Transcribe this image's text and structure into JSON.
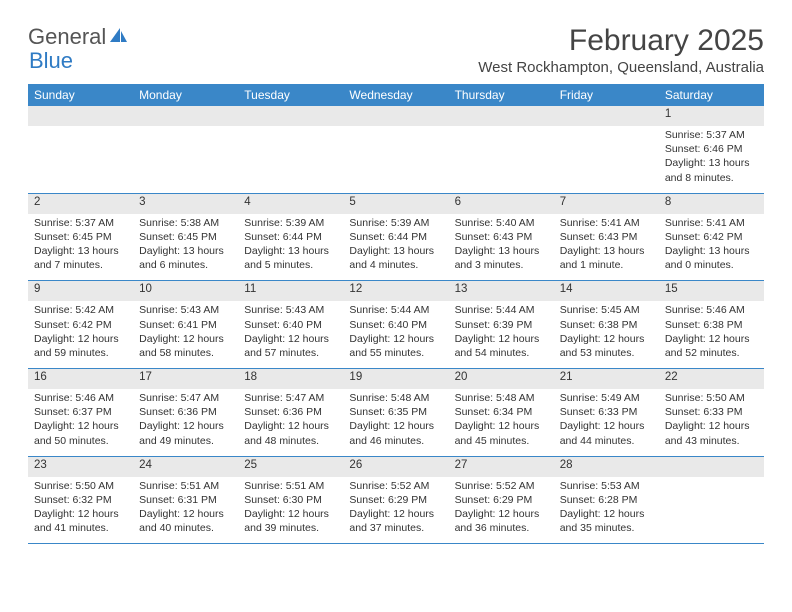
{
  "logo": {
    "text1": "General",
    "text2": "Blue"
  },
  "title": "February 2025",
  "location": "West Rockhampton, Queensland, Australia",
  "colors": {
    "header_bg": "#3a87c8",
    "header_text": "#ffffff",
    "daynum_bg": "#e9e9e9",
    "border": "#3a87c8",
    "text": "#333333",
    "logo_gray": "#555555",
    "logo_blue": "#2f7bc4",
    "page_bg": "#ffffff"
  },
  "day_labels": [
    "Sunday",
    "Monday",
    "Tuesday",
    "Wednesday",
    "Thursday",
    "Friday",
    "Saturday"
  ],
  "weeks": [
    [
      null,
      null,
      null,
      null,
      null,
      null,
      {
        "n": "1",
        "sunrise": "Sunrise: 5:37 AM",
        "sunset": "Sunset: 6:46 PM",
        "daylight": "Daylight: 13 hours and 8 minutes."
      }
    ],
    [
      {
        "n": "2",
        "sunrise": "Sunrise: 5:37 AM",
        "sunset": "Sunset: 6:45 PM",
        "daylight": "Daylight: 13 hours and 7 minutes."
      },
      {
        "n": "3",
        "sunrise": "Sunrise: 5:38 AM",
        "sunset": "Sunset: 6:45 PM",
        "daylight": "Daylight: 13 hours and 6 minutes."
      },
      {
        "n": "4",
        "sunrise": "Sunrise: 5:39 AM",
        "sunset": "Sunset: 6:44 PM",
        "daylight": "Daylight: 13 hours and 5 minutes."
      },
      {
        "n": "5",
        "sunrise": "Sunrise: 5:39 AM",
        "sunset": "Sunset: 6:44 PM",
        "daylight": "Daylight: 13 hours and 4 minutes."
      },
      {
        "n": "6",
        "sunrise": "Sunrise: 5:40 AM",
        "sunset": "Sunset: 6:43 PM",
        "daylight": "Daylight: 13 hours and 3 minutes."
      },
      {
        "n": "7",
        "sunrise": "Sunrise: 5:41 AM",
        "sunset": "Sunset: 6:43 PM",
        "daylight": "Daylight: 13 hours and 1 minute."
      },
      {
        "n": "8",
        "sunrise": "Sunrise: 5:41 AM",
        "sunset": "Sunset: 6:42 PM",
        "daylight": "Daylight: 13 hours and 0 minutes."
      }
    ],
    [
      {
        "n": "9",
        "sunrise": "Sunrise: 5:42 AM",
        "sunset": "Sunset: 6:42 PM",
        "daylight": "Daylight: 12 hours and 59 minutes."
      },
      {
        "n": "10",
        "sunrise": "Sunrise: 5:43 AM",
        "sunset": "Sunset: 6:41 PM",
        "daylight": "Daylight: 12 hours and 58 minutes."
      },
      {
        "n": "11",
        "sunrise": "Sunrise: 5:43 AM",
        "sunset": "Sunset: 6:40 PM",
        "daylight": "Daylight: 12 hours and 57 minutes."
      },
      {
        "n": "12",
        "sunrise": "Sunrise: 5:44 AM",
        "sunset": "Sunset: 6:40 PM",
        "daylight": "Daylight: 12 hours and 55 minutes."
      },
      {
        "n": "13",
        "sunrise": "Sunrise: 5:44 AM",
        "sunset": "Sunset: 6:39 PM",
        "daylight": "Daylight: 12 hours and 54 minutes."
      },
      {
        "n": "14",
        "sunrise": "Sunrise: 5:45 AM",
        "sunset": "Sunset: 6:38 PM",
        "daylight": "Daylight: 12 hours and 53 minutes."
      },
      {
        "n": "15",
        "sunrise": "Sunrise: 5:46 AM",
        "sunset": "Sunset: 6:38 PM",
        "daylight": "Daylight: 12 hours and 52 minutes."
      }
    ],
    [
      {
        "n": "16",
        "sunrise": "Sunrise: 5:46 AM",
        "sunset": "Sunset: 6:37 PM",
        "daylight": "Daylight: 12 hours and 50 minutes."
      },
      {
        "n": "17",
        "sunrise": "Sunrise: 5:47 AM",
        "sunset": "Sunset: 6:36 PM",
        "daylight": "Daylight: 12 hours and 49 minutes."
      },
      {
        "n": "18",
        "sunrise": "Sunrise: 5:47 AM",
        "sunset": "Sunset: 6:36 PM",
        "daylight": "Daylight: 12 hours and 48 minutes."
      },
      {
        "n": "19",
        "sunrise": "Sunrise: 5:48 AM",
        "sunset": "Sunset: 6:35 PM",
        "daylight": "Daylight: 12 hours and 46 minutes."
      },
      {
        "n": "20",
        "sunrise": "Sunrise: 5:48 AM",
        "sunset": "Sunset: 6:34 PM",
        "daylight": "Daylight: 12 hours and 45 minutes."
      },
      {
        "n": "21",
        "sunrise": "Sunrise: 5:49 AM",
        "sunset": "Sunset: 6:33 PM",
        "daylight": "Daylight: 12 hours and 44 minutes."
      },
      {
        "n": "22",
        "sunrise": "Sunrise: 5:50 AM",
        "sunset": "Sunset: 6:33 PM",
        "daylight": "Daylight: 12 hours and 43 minutes."
      }
    ],
    [
      {
        "n": "23",
        "sunrise": "Sunrise: 5:50 AM",
        "sunset": "Sunset: 6:32 PM",
        "daylight": "Daylight: 12 hours and 41 minutes."
      },
      {
        "n": "24",
        "sunrise": "Sunrise: 5:51 AM",
        "sunset": "Sunset: 6:31 PM",
        "daylight": "Daylight: 12 hours and 40 minutes."
      },
      {
        "n": "25",
        "sunrise": "Sunrise: 5:51 AM",
        "sunset": "Sunset: 6:30 PM",
        "daylight": "Daylight: 12 hours and 39 minutes."
      },
      {
        "n": "26",
        "sunrise": "Sunrise: 5:52 AM",
        "sunset": "Sunset: 6:29 PM",
        "daylight": "Daylight: 12 hours and 37 minutes."
      },
      {
        "n": "27",
        "sunrise": "Sunrise: 5:52 AM",
        "sunset": "Sunset: 6:29 PM",
        "daylight": "Daylight: 12 hours and 36 minutes."
      },
      {
        "n": "28",
        "sunrise": "Sunrise: 5:53 AM",
        "sunset": "Sunset: 6:28 PM",
        "daylight": "Daylight: 12 hours and 35 minutes."
      },
      null
    ]
  ]
}
